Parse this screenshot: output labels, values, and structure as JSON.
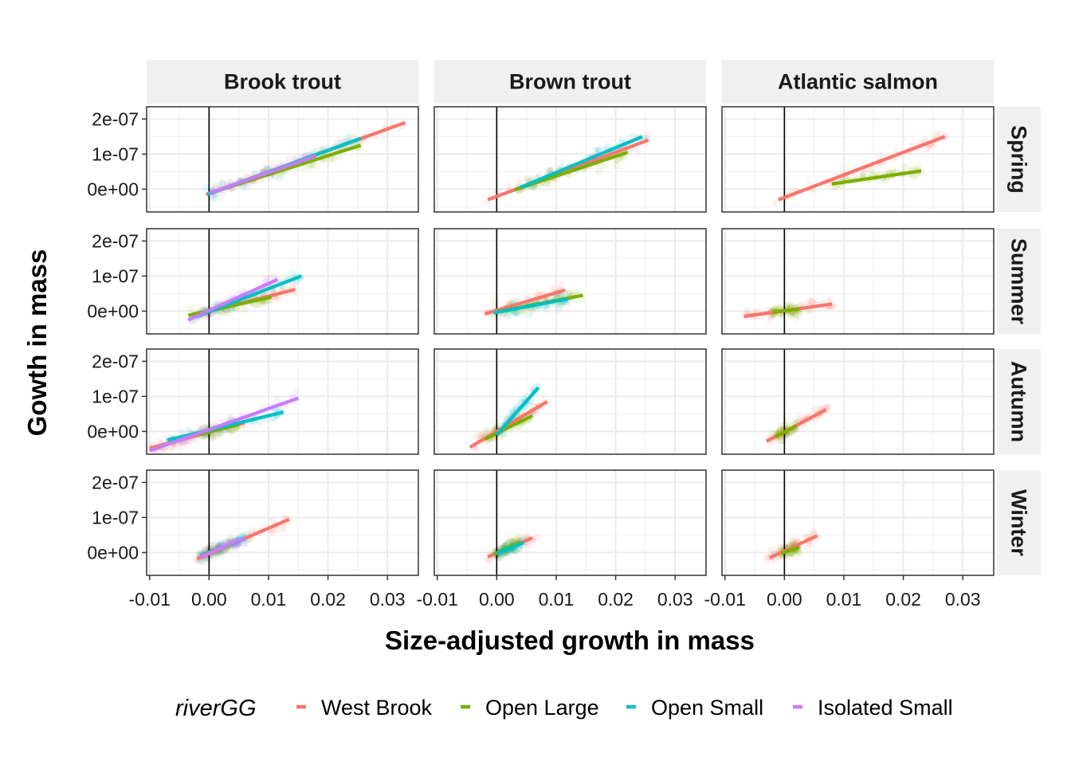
{
  "chart_data": {
    "type": "scatter",
    "xlabel": "Size-adjusted growth in mass",
    "ylabel": "Gowth in mass",
    "xlim": [
      -0.0105,
      0.0352
    ],
    "ylim": [
      -6.5e-08,
      2.35e-07
    ],
    "x_ticks": [
      -0.01,
      0.0,
      0.01,
      0.02,
      0.03
    ],
    "x_tick_labels": [
      "-0.01",
      "0.00",
      "0.01",
      "0.02",
      "0.03"
    ],
    "y_ticks": [
      0,
      1e-07,
      2e-07
    ],
    "y_tick_labels": [
      "0e+00",
      "1e-07",
      "2e-07"
    ],
    "grid": true,
    "vline_at_x": 0,
    "columns": [
      "Brook trout",
      "Brown trout",
      "Atlantic salmon"
    ],
    "rows": [
      "Spring",
      "Summer",
      "Autumn",
      "Winter"
    ],
    "legend": {
      "title": "riverGG",
      "position": "bottom",
      "items": [
        {
          "name": "West Brook",
          "color": "#F8766D"
        },
        {
          "name": "Open Large",
          "color": "#7CAE00"
        },
        {
          "name": "Open Small",
          "color": "#00BFC4"
        },
        {
          "name": "Isolated Small",
          "color": "#C77CFF"
        }
      ]
    },
    "panels": [
      {
        "species": "Brook trout",
        "season": "Spring",
        "lines": [
          {
            "series": "West Brook",
            "x": [
              -0.0005,
              0.033
            ],
            "y": [
              -1.5e-08,
              1.9e-07
            ]
          },
          {
            "series": "Open Large",
            "x": [
              0.0,
              0.0255
            ],
            "y": [
              -1.2e-08,
              1.25e-07
            ]
          },
          {
            "series": "Open Small",
            "x": [
              -0.0003,
              0.0255
            ],
            "y": [
              -1.5e-08,
              1.45e-07
            ]
          },
          {
            "series": "Isolated Small",
            "x": [
              0.0,
              0.018
            ],
            "y": [
              -1.2e-08,
              9.5e-08
            ]
          }
        ]
      },
      {
        "species": "Brown trout",
        "season": "Spring",
        "lines": [
          {
            "series": "West Brook",
            "x": [
              -0.0015,
              0.0255
            ],
            "y": [
              -3e-08,
              1.4e-07
            ]
          },
          {
            "series": "Open Large",
            "x": [
              0.003,
              0.022
            ],
            "y": [
              -2e-09,
              1.05e-07
            ]
          },
          {
            "series": "Open Small",
            "x": [
              0.004,
              0.0245
            ],
            "y": [
              5e-09,
              1.5e-07
            ]
          }
        ]
      },
      {
        "species": "Atlantic salmon",
        "season": "Spring",
        "lines": [
          {
            "series": "West Brook",
            "x": [
              -0.001,
              0.027
            ],
            "y": [
              -3e-08,
              1.5e-07
            ]
          },
          {
            "series": "Open Large",
            "x": [
              0.008,
              0.023
            ],
            "y": [
              1.5e-08,
              5.2e-08
            ]
          }
        ]
      },
      {
        "species": "Brook trout",
        "season": "Summer",
        "lines": [
          {
            "series": "West Brook",
            "x": [
              -0.001,
              0.0145
            ],
            "y": [
              -5e-09,
              6.2e-08
            ]
          },
          {
            "series": "Open Large",
            "x": [
              -0.0035,
              0.0105
            ],
            "y": [
              -1.2e-08,
              4e-08
            ]
          },
          {
            "series": "Open Small",
            "x": [
              -0.002,
              0.0155
            ],
            "y": [
              -1.5e-08,
              1e-07
            ]
          },
          {
            "series": "Isolated Small",
            "x": [
              -0.0035,
              0.0115
            ],
            "y": [
              -2.5e-08,
              9e-08
            ]
          }
        ]
      },
      {
        "species": "Brown trout",
        "season": "Summer",
        "lines": [
          {
            "series": "West Brook",
            "x": [
              -0.002,
              0.0115
            ],
            "y": [
              -8e-09,
              6e-08
            ]
          },
          {
            "series": "Open Large",
            "x": [
              0.0,
              0.0145
            ],
            "y": [
              -2e-09,
              4.5e-08
            ]
          },
          {
            "series": "Open Small",
            "x": [
              -0.0005,
              0.012
            ],
            "y": [
              -5e-09,
              3.5e-08
            ]
          }
        ]
      },
      {
        "species": "Atlantic salmon",
        "season": "Summer",
        "lines": [
          {
            "series": "West Brook",
            "x": [
              -0.0068,
              0.008
            ],
            "y": [
              -1.5e-08,
              2e-08
            ]
          },
          {
            "series": "Open Large",
            "x": [
              -0.002,
              0.0025
            ],
            "y": [
              -2e-09,
              5e-09
            ]
          }
        ]
      },
      {
        "species": "Brook trout",
        "season": "Autumn",
        "lines": [
          {
            "series": "West Brook",
            "x": [
              -0.01,
              0.006
            ],
            "y": [
              -4.8e-08,
              2.5e-08
            ]
          },
          {
            "series": "Open Large",
            "x": [
              -0.002,
              0.005
            ],
            "y": [
              -1e-08,
              2e-08
            ]
          },
          {
            "series": "Open Small",
            "x": [
              -0.007,
              0.0125
            ],
            "y": [
              -2.5e-08,
              5.5e-08
            ]
          },
          {
            "series": "Isolated Small",
            "x": [
              -0.01,
              0.015
            ],
            "y": [
              -5.5e-08,
              9.5e-08
            ]
          }
        ]
      },
      {
        "species": "Brown trout",
        "season": "Autumn",
        "lines": [
          {
            "series": "West Brook",
            "x": [
              -0.0045,
              0.0085
            ],
            "y": [
              -4.5e-08,
              8.5e-08
            ]
          },
          {
            "series": "Open Large",
            "x": [
              -0.002,
              0.006
            ],
            "y": [
              -2.2e-08,
              4.5e-08
            ]
          },
          {
            "series": "Open Small",
            "x": [
              0.0,
              0.007
            ],
            "y": [
              -1e-08,
              1.25e-07
            ]
          }
        ]
      },
      {
        "species": "Atlantic salmon",
        "season": "Autumn",
        "lines": [
          {
            "series": "West Brook",
            "x": [
              -0.003,
              0.007
            ],
            "y": [
              -2.8e-08,
              6.2e-08
            ]
          },
          {
            "series": "Open Large",
            "x": [
              -0.0015,
              0.002
            ],
            "y": [
              -1.5e-08,
              1.5e-08
            ]
          }
        ]
      },
      {
        "species": "Brook trout",
        "season": "Winter",
        "lines": [
          {
            "series": "West Brook",
            "x": [
              -0.002,
              0.0135
            ],
            "y": [
              -1.8e-08,
              9.5e-08
            ]
          },
          {
            "series": "Open Large",
            "x": [
              -0.001,
              0.004
            ],
            "y": [
              -5e-09,
              2.5e-08
            ]
          },
          {
            "series": "Open Small",
            "x": [
              -0.0015,
              0.006
            ],
            "y": [
              -1e-08,
              4e-08
            ]
          },
          {
            "series": "Isolated Small",
            "x": [
              -0.0015,
              0.006
            ],
            "y": [
              -1.2e-08,
              4.2e-08
            ]
          }
        ]
      },
      {
        "species": "Brown trout",
        "season": "Winter",
        "lines": [
          {
            "series": "West Brook",
            "x": [
              -0.0015,
              0.006
            ],
            "y": [
              -1.2e-08,
              4.2e-08
            ]
          },
          {
            "series": "Open Large",
            "x": [
              -0.0005,
              0.004
            ],
            "y": [
              -5e-09,
              3e-08
            ]
          },
          {
            "series": "Open Small",
            "x": [
              0.0,
              0.0045
            ],
            "y": [
              -2e-09,
              2.8e-08
            ]
          }
        ]
      },
      {
        "species": "Atlantic salmon",
        "season": "Winter",
        "lines": [
          {
            "series": "West Brook",
            "x": [
              -0.0025,
              0.0055
            ],
            "y": [
              -1.5e-08,
              4.8e-08
            ]
          },
          {
            "series": "Open Large",
            "x": [
              -0.0005,
              0.0025
            ],
            "y": [
              -2e-09,
              1.5e-08
            ]
          }
        ]
      }
    ]
  }
}
